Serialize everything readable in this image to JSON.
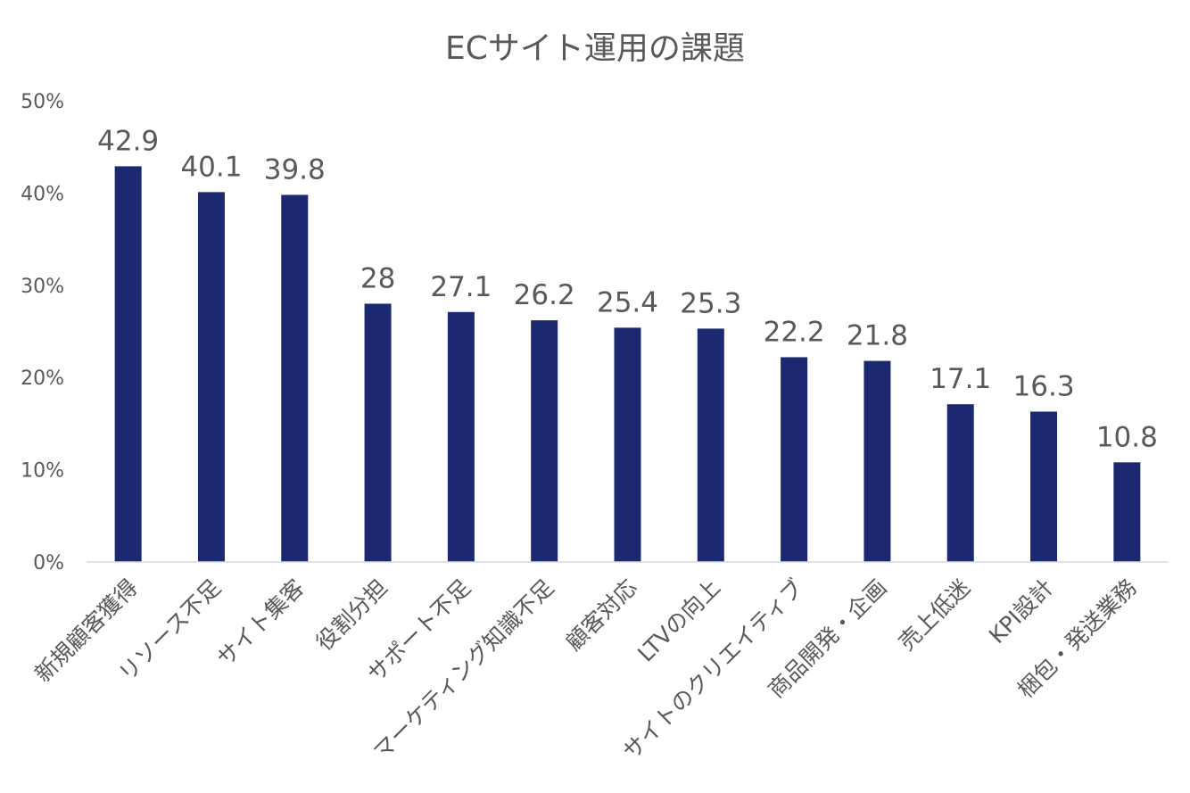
{
  "chart_data": {
    "type": "bar",
    "title": "ECサイト運用の課題",
    "categories": [
      "新規顧客獲得",
      "リソース不足",
      "サイト集客",
      "役割分担",
      "サポート不足",
      "マーケティング知識不足",
      "顧客対応",
      "LTVの向上",
      "サイトのクリエイティブ",
      "商品開発・企画",
      "売上低迷",
      "KPI設計",
      "梱包・発送業務"
    ],
    "values": [
      42.9,
      40.1,
      39.8,
      28,
      27.1,
      26.2,
      25.4,
      25.3,
      22.2,
      21.8,
      17.1,
      16.3,
      10.8
    ],
    "data_labels": [
      "42.9",
      "40.1",
      "39.8",
      "28",
      "27.1",
      "26.2",
      "25.4",
      "25.3",
      "22.2",
      "21.8",
      "17.1",
      "16.3",
      "10.8"
    ],
    "y_ticks": [
      "0%",
      "10%",
      "20%",
      "30%",
      "40%",
      "50%"
    ],
    "ylim": [
      0,
      50
    ],
    "grid": false,
    "legend": "none",
    "bar_color": "#1c2870"
  }
}
